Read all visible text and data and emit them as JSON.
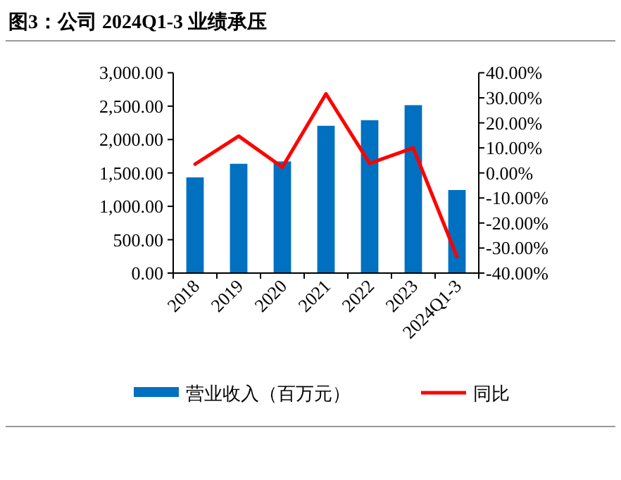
{
  "chart_data": {
    "type": "bar",
    "title": "图3：公司 2024Q1-3 业绩承压",
    "categories": [
      "2018",
      "2019",
      "2020",
      "2021",
      "2022",
      "2023",
      "2024Q1-3"
    ],
    "series": [
      {
        "name": "营业收入（百万元）",
        "color": "#0070c0",
        "values": [
          1433,
          1637,
          1672,
          2206,
          2290,
          2515,
          1244
        ]
      },
      {
        "name": "同比",
        "type": "line",
        "axis": "y2",
        "color": "#ff0000",
        "values": [
          3.5,
          14.7,
          2.3,
          31.6,
          3.8,
          10.0,
          -33.4
        ]
      }
    ],
    "ylim": [
      0,
      3000
    ],
    "yticks": [
      {
        "value": 0,
        "label": "0.00"
      },
      {
        "value": 500,
        "label": "500.00"
      },
      {
        "value": 1000,
        "label": "1,000.00"
      },
      {
        "value": 1500,
        "label": "1,500.00"
      },
      {
        "value": 2000,
        "label": "2,000.00"
      },
      {
        "value": 2500,
        "label": "2,500.00"
      },
      {
        "value": 3000,
        "label": "3,000.00"
      }
    ],
    "y2lim": [
      -40,
      40
    ],
    "y2ticks": [
      {
        "value": -40,
        "label": "-40.00%"
      },
      {
        "value": -30,
        "label": "-30.00%"
      },
      {
        "value": -20,
        "label": "-20.00%"
      },
      {
        "value": -10,
        "label": "-10.00%"
      },
      {
        "value": 0,
        "label": "0.00%"
      },
      {
        "value": 10,
        "label": "10.00%"
      },
      {
        "value": 20,
        "label": "20.00%"
      },
      {
        "value": 30,
        "label": "30.00%"
      },
      {
        "value": 40,
        "label": "40.00%"
      }
    ],
    "legend": "bottom"
  }
}
